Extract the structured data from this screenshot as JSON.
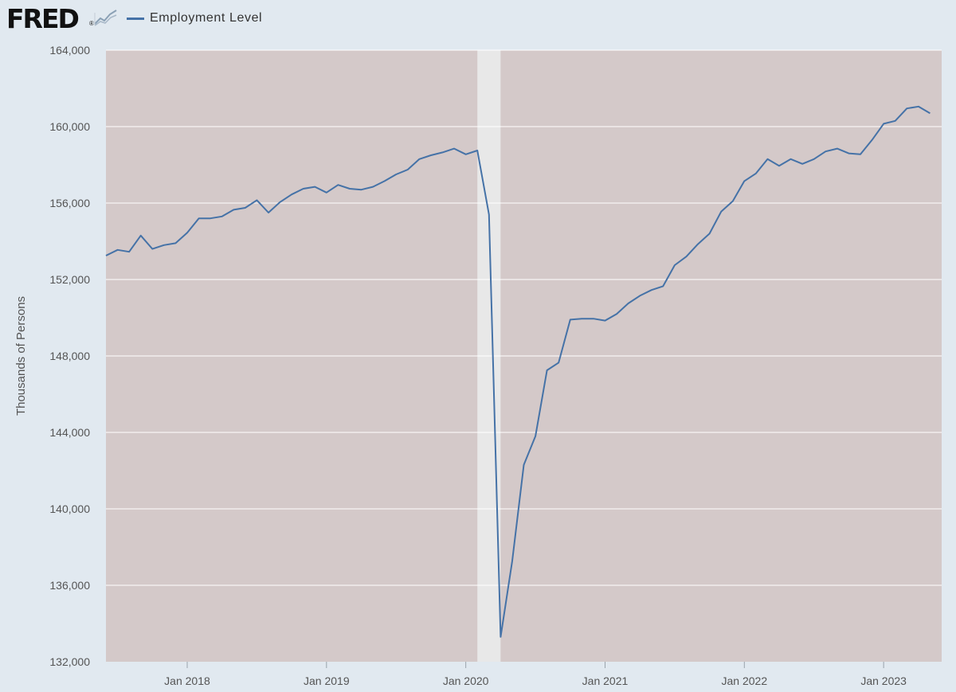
{
  "header": {
    "logo_text": "FRED",
    "logo_mark": "®",
    "logo_icon": "line-graph-icon"
  },
  "colors": {
    "page_bg": "#e1e9f0",
    "plot_bg": "#d4c9c9",
    "recession_band": "#e8e8e8",
    "series_line": "#4572a7",
    "grid": "#ffffff"
  },
  "chart_data": {
    "type": "line",
    "title": "",
    "legend_position": "top-left",
    "ylabel": "Thousands of Persons",
    "xlabel": "",
    "ylim": [
      132000,
      164000
    ],
    "xlim": [
      "2017-06",
      "2023-06"
    ],
    "grid": true,
    "yticks": [
      132000,
      136000,
      140000,
      144000,
      148000,
      152000,
      156000,
      160000,
      164000
    ],
    "ytick_labels": [
      "132,000",
      "136,000",
      "140,000",
      "144,000",
      "148,000",
      "152,000",
      "156,000",
      "160,000",
      "164,000"
    ],
    "xticks": [
      "2018-01",
      "2019-01",
      "2020-01",
      "2021-01",
      "2022-01",
      "2023-01"
    ],
    "xtick_labels": [
      "Jan 2018",
      "Jan 2019",
      "Jan 2020",
      "Jan 2021",
      "Jan 2022",
      "Jan 2023"
    ],
    "shaded_periods": [
      {
        "start": "2020-02",
        "end": "2020-04"
      }
    ],
    "series": [
      {
        "name": "Employment Level",
        "x": [
          "2017-06",
          "2017-07",
          "2017-08",
          "2017-09",
          "2017-10",
          "2017-11",
          "2017-12",
          "2018-01",
          "2018-02",
          "2018-03",
          "2018-04",
          "2018-05",
          "2018-06",
          "2018-07",
          "2018-08",
          "2018-09",
          "2018-10",
          "2018-11",
          "2018-12",
          "2019-01",
          "2019-02",
          "2019-03",
          "2019-04",
          "2019-05",
          "2019-06",
          "2019-07",
          "2019-08",
          "2019-09",
          "2019-10",
          "2019-11",
          "2019-12",
          "2020-01",
          "2020-02",
          "2020-03",
          "2020-04",
          "2020-05",
          "2020-06",
          "2020-07",
          "2020-08",
          "2020-09",
          "2020-10",
          "2020-11",
          "2020-12",
          "2021-01",
          "2021-02",
          "2021-03",
          "2021-04",
          "2021-05",
          "2021-06",
          "2021-07",
          "2021-08",
          "2021-09",
          "2021-10",
          "2021-11",
          "2021-12",
          "2022-01",
          "2022-02",
          "2022-03",
          "2022-04",
          "2022-05",
          "2022-06",
          "2022-07",
          "2022-08",
          "2022-09",
          "2022-10",
          "2022-11",
          "2022-12",
          "2023-01",
          "2023-02",
          "2023-03",
          "2023-04",
          "2023-05"
        ],
        "values": [
          153250,
          153550,
          153450,
          154300,
          153600,
          153800,
          153900,
          154450,
          155200,
          155200,
          155300,
          155650,
          155750,
          156150,
          155500,
          156050,
          156450,
          156750,
          156850,
          156550,
          156950,
          156750,
          156700,
          156850,
          157150,
          157500,
          157750,
          158300,
          158500,
          158650,
          158850,
          158550,
          158750,
          155400,
          133300,
          137250,
          142300,
          143800,
          147250,
          147650,
          149900,
          149950,
          149950,
          149850,
          150200,
          150750,
          151150,
          151450,
          151650,
          152750,
          153200,
          153850,
          154400,
          155550,
          156100,
          157150,
          157550,
          158300,
          157950,
          158300,
          158050,
          158300,
          158700,
          158850,
          158600,
          158550,
          159300,
          160150,
          160300,
          160950,
          161050,
          160700
        ]
      }
    ]
  }
}
